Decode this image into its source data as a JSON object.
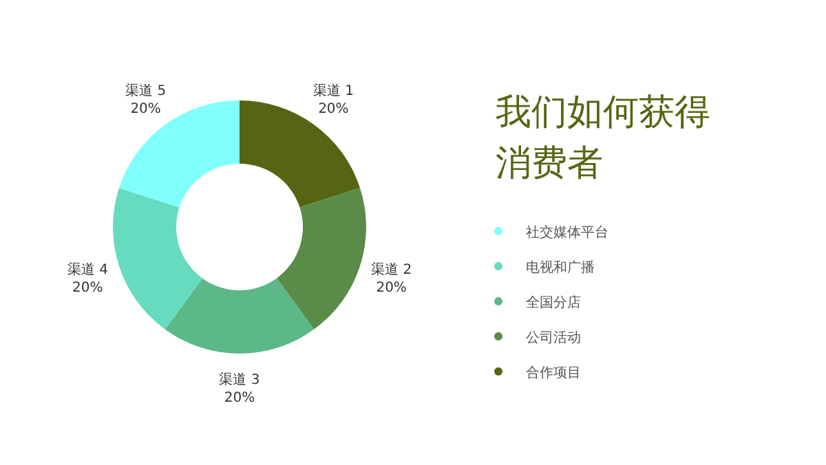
{
  "chart_data": {
    "type": "donut",
    "title": "我们如何获得消费者",
    "categories": [
      "渠道 1",
      "渠道 2",
      "渠道 3",
      "渠道 4",
      "渠道 5"
    ],
    "values": [
      20,
      20,
      20,
      20,
      20
    ],
    "value_labels": [
      "20%",
      "20%",
      "20%",
      "20%",
      "20%"
    ],
    "colors": [
      "#566514",
      "#5a8b48",
      "#5cb887",
      "#66dbc0",
      "#80fffd"
    ],
    "annotations": [
      "社交媒体平台",
      "电视和广播",
      "全国分店",
      "公司活动",
      "合作项目"
    ]
  }
}
